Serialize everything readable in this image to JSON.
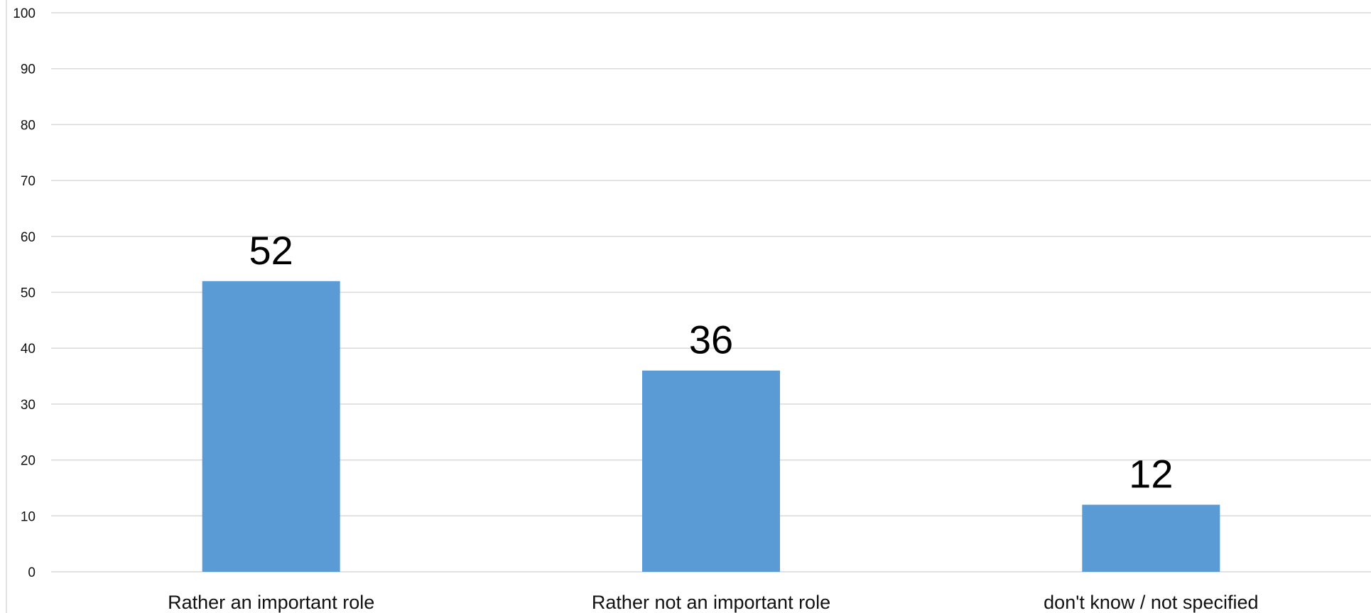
{
  "chart_data": {
    "type": "bar",
    "title": "",
    "xlabel": "",
    "ylabel": "",
    "categories": [
      "Rather an important role",
      "Rather not an important role",
      "don't know / not specified"
    ],
    "values": [
      52,
      36,
      12
    ],
    "data_labels": [
      "52",
      "36",
      "12"
    ],
    "ylim": [
      0,
      100
    ],
    "yticks": [
      0,
      10,
      20,
      30,
      40,
      50,
      60,
      70,
      80,
      90,
      100
    ],
    "ytick_labels": [
      "0",
      "10",
      "20",
      "30",
      "40",
      "50",
      "60",
      "70",
      "80",
      "90",
      "100"
    ],
    "grid": true,
    "legend": "none",
    "colors": {
      "bar": "#5b9bd5",
      "grid": "#d9d9d9",
      "text": "#111111"
    }
  }
}
